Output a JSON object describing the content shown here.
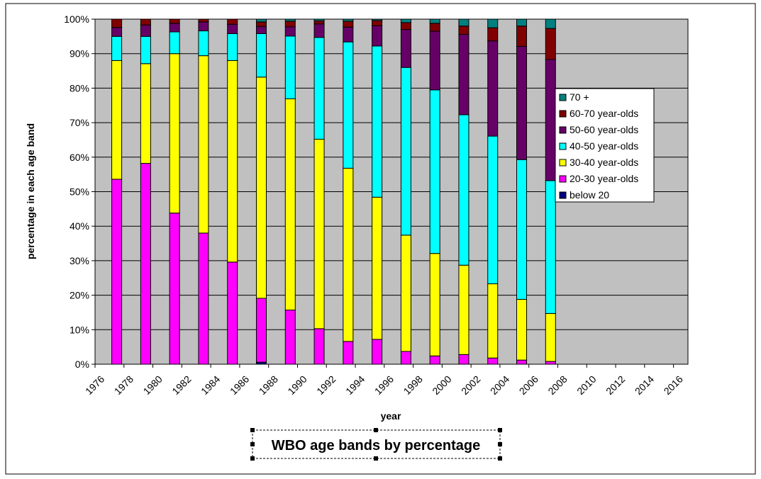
{
  "chart_data": {
    "type": "bar",
    "stacked": true,
    "title": "WBO age bands by percentage",
    "xlabel": "year",
    "ylabel": "percentage in each age band",
    "ylim": [
      0,
      100
    ],
    "yticks": [
      "0%",
      "10%",
      "20%",
      "30%",
      "40%",
      "50%",
      "60%",
      "70%",
      "80%",
      "90%",
      "100%"
    ],
    "xtick_labels": [
      "1976",
      "1978",
      "1980",
      "1982",
      "1984",
      "1986",
      "1988",
      "1990",
      "1992",
      "1994",
      "1996",
      "1998",
      "2000",
      "2002",
      "2004",
      "2006",
      "2008",
      "2010",
      "2012",
      "2014",
      "2016"
    ],
    "categories": [
      "1977",
      "1979",
      "1981",
      "1983",
      "1985",
      "1987",
      "1989",
      "1991",
      "1993",
      "1995",
      "1997",
      "1999",
      "2001",
      "2003",
      "2005",
      "2007"
    ],
    "grid": true,
    "legend_position": "right",
    "background_color": "#c0c0c0",
    "series": [
      {
        "name": "below 20",
        "color": "#000080",
        "values": [
          0,
          0,
          0,
          0,
          0,
          0.6,
          0,
          0,
          0,
          0,
          0,
          0,
          0,
          0,
          0,
          0
        ]
      },
      {
        "name": "20-30 year-olds",
        "color": "#ff00ff",
        "values": [
          53.6,
          58.2,
          43.8,
          38.0,
          29.6,
          18.5,
          15.7,
          10.3,
          6.6,
          7.2,
          3.7,
          2.4,
          2.8,
          1.8,
          1.2,
          0.8
        ]
      },
      {
        "name": "30-40 year-olds",
        "color": "#ffff00",
        "values": [
          34.4,
          28.9,
          46.2,
          51.4,
          58.4,
          64.1,
          61.2,
          54.9,
          50.2,
          41.2,
          33.7,
          29.7,
          25.9,
          21.5,
          17.6,
          13.9
        ]
      },
      {
        "name": "40-50 year-olds",
        "color": "#00ffff",
        "values": [
          7.0,
          7.9,
          6.3,
          7.2,
          7.8,
          12.6,
          18.2,
          29.5,
          36.6,
          43.8,
          48.6,
          47.4,
          43.6,
          42.8,
          40.5,
          38.5
        ]
      },
      {
        "name": "50-60 year-olds",
        "color": "#660066",
        "values": [
          2.6,
          3.3,
          2.5,
          2.6,
          2.7,
          2.1,
          2.7,
          3.9,
          4.3,
          5.9,
          11.0,
          17.0,
          23.3,
          27.6,
          32.8,
          35.1
        ]
      },
      {
        "name": "60-70 year-olds",
        "color": "#800000",
        "values": [
          2.4,
          1.7,
          1.2,
          0.8,
          1.5,
          1.3,
          1.6,
          0.9,
          1.7,
          1.5,
          2.0,
          2.3,
          2.4,
          3.8,
          5.9,
          9.0
        ]
      },
      {
        "name": "70 +",
        "color": "#008080",
        "values": [
          0,
          0,
          0,
          0,
          0,
          0.8,
          0.6,
          0.5,
          0.6,
          0.4,
          1.0,
          1.2,
          2.0,
          2.5,
          2.0,
          2.7
        ]
      }
    ]
  }
}
